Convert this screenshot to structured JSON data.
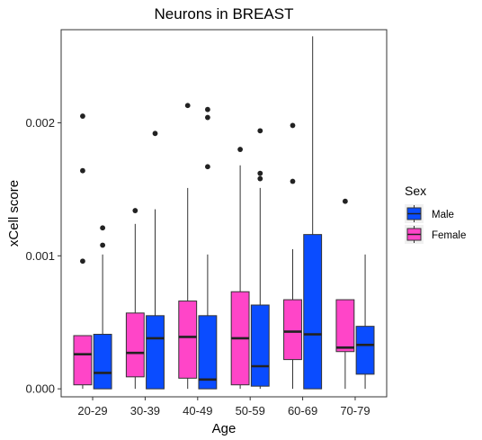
{
  "chart_data": {
    "type": "boxplot",
    "title": "Neurons in BREAST",
    "xlabel": "Age",
    "ylabel": "xCell score",
    "categories": [
      "20-29",
      "30-39",
      "40-49",
      "50-59",
      "60-69",
      "70-79"
    ],
    "y_ticks": [
      0.0,
      0.001,
      0.002
    ],
    "y_tick_labels": [
      "0.000",
      "0.001",
      "0.002"
    ],
    "ylim": [
      -6e-05,
      0.0027
    ],
    "grid": false,
    "legend": {
      "title": "Sex",
      "position": "right",
      "entries": [
        {
          "name": "Male",
          "color": "#0a4cff"
        },
        {
          "name": "Female",
          "color": "#ff45c8"
        }
      ]
    },
    "series": [
      {
        "name": "Female",
        "color": "#ff45c8",
        "boxes": [
          {
            "category": "20-29",
            "min": 0.0,
            "q1": 3e-05,
            "median": 0.00026,
            "q3": 0.0004,
            "max": 0.0004,
            "outliers": [
              0.00205,
              0.00164,
              0.00096
            ]
          },
          {
            "category": "30-39",
            "min": 0.0,
            "q1": 9e-05,
            "median": 0.00027,
            "q3": 0.00057,
            "max": 0.00124,
            "outliers": [
              0.00134
            ]
          },
          {
            "category": "40-49",
            "min": 0.0,
            "q1": 8e-05,
            "median": 0.00039,
            "q3": 0.00066,
            "max": 0.00151,
            "outliers": [
              0.00213
            ]
          },
          {
            "category": "50-59",
            "min": 0.0,
            "q1": 3e-05,
            "median": 0.00038,
            "q3": 0.00073,
            "max": 0.00168,
            "outliers": [
              0.0018
            ]
          },
          {
            "category": "60-69",
            "min": 0.0,
            "q1": 0.00022,
            "median": 0.00043,
            "q3": 0.00067,
            "max": 0.00105,
            "outliers": [
              0.00198,
              0.00156
            ]
          },
          {
            "category": "70-79",
            "min": 0.0,
            "q1": 0.00028,
            "median": 0.00031,
            "q3": 0.00067,
            "max": 0.00067,
            "outliers": [
              0.00141
            ]
          }
        ]
      },
      {
        "name": "Male",
        "color": "#0a4cff",
        "boxes": [
          {
            "category": "20-29",
            "min": 0.0,
            "q1": 0.0,
            "median": 0.00012,
            "q3": 0.00041,
            "max": 0.00101,
            "outliers": [
              0.00121,
              0.00108
            ]
          },
          {
            "category": "30-39",
            "min": 0.0,
            "q1": 0.0,
            "median": 0.00038,
            "q3": 0.00055,
            "max": 0.00135,
            "outliers": [
              0.00192
            ]
          },
          {
            "category": "40-49",
            "min": 0.0,
            "q1": 0.0,
            "median": 7e-05,
            "q3": 0.00055,
            "max": 0.00101,
            "outliers": [
              0.0021,
              0.00204,
              0.00167
            ]
          },
          {
            "category": "50-59",
            "min": 0.0,
            "q1": 2e-05,
            "median": 0.00017,
            "q3": 0.00063,
            "max": 0.00151,
            "outliers": [
              0.00194,
              0.00162,
              0.00158
            ]
          },
          {
            "category": "60-69",
            "min": 0.0,
            "q1": 0.0,
            "median": 0.00041,
            "q3": 0.00116,
            "max": 0.00265,
            "outliers": []
          },
          {
            "category": "70-79",
            "min": 0.0,
            "q1": 0.00011,
            "median": 0.00033,
            "q3": 0.00047,
            "max": 0.00101,
            "outliers": []
          }
        ]
      }
    ]
  }
}
